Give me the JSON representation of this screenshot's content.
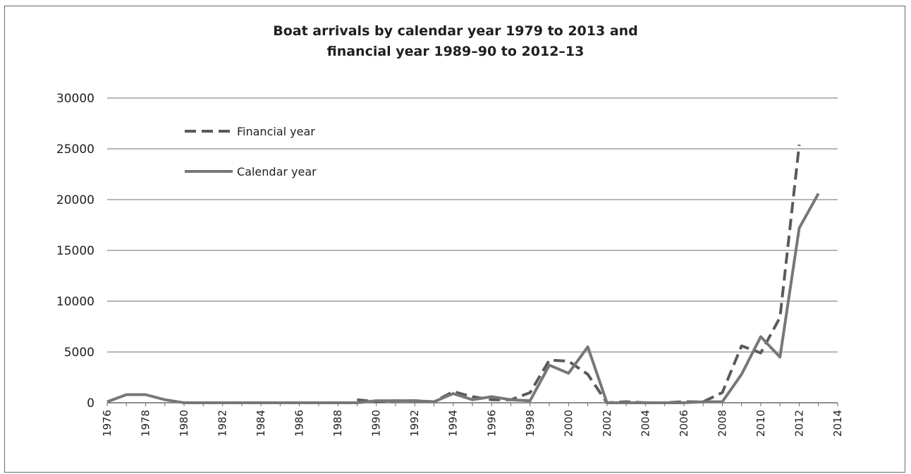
{
  "chart_data": {
    "type": "line",
    "title_lines": [
      "Boat arrivals by calendar year 1979 to 2013 and",
      "financial year  1989–90  to 2012–13"
    ],
    "xlabel": "",
    "ylabel": "",
    "xlim": [
      1976,
      2014
    ],
    "ylim": [
      0,
      30000
    ],
    "y_ticks": [
      0,
      5000,
      10000,
      15000,
      20000,
      25000,
      30000
    ],
    "x_ticks": [
      "1976",
      "1978",
      "1980",
      "1982",
      "1984",
      "1986",
      "1988",
      "1990",
      "1992",
      "1994",
      "1996",
      "1998",
      "2000",
      "2002",
      "2004",
      "2006",
      "2008",
      "2010",
      "2012",
      "2014"
    ],
    "grid": "horizontal",
    "legend_position": "top-left",
    "series": [
      {
        "name": "Financial year",
        "style": "dashed",
        "color": "#5a5a5a",
        "x": [
          1989,
          1990,
          1991,
          1992,
          1993,
          1994,
          1995,
          1996,
          1997,
          1998,
          1999,
          2000,
          2001,
          2002,
          2003,
          2004,
          2005,
          2006,
          2007,
          2008,
          2009,
          2010,
          2011,
          2012
        ],
        "y": [
          300,
          100,
          200,
          200,
          100,
          1100,
          600,
          300,
          300,
          1000,
          4200,
          4100,
          2800,
          0,
          100,
          0,
          0,
          100,
          100,
          1000,
          5600,
          4900,
          8400,
          25400
        ]
      },
      {
        "name": "Calendar year",
        "style": "solid",
        "color": "#777777",
        "x": [
          1976,
          1977,
          1978,
          1979,
          1980,
          1981,
          1982,
          1983,
          1984,
          1985,
          1986,
          1987,
          1988,
          1989,
          1990,
          1991,
          1992,
          1993,
          1994,
          1995,
          1996,
          1997,
          1998,
          1999,
          2000,
          2001,
          2002,
          2003,
          2004,
          2005,
          2006,
          2007,
          2008,
          2009,
          2010,
          2011,
          2012,
          2013
        ],
        "y": [
          100,
          800,
          800,
          300,
          0,
          0,
          0,
          0,
          0,
          0,
          0,
          0,
          0,
          0,
          200,
          200,
          200,
          100,
          900,
          300,
          600,
          300,
          200,
          3700,
          2900,
          5500,
          0,
          0,
          0,
          0,
          0,
          100,
          100,
          2800,
          6500,
          4500,
          17200,
          20600
        ]
      }
    ]
  }
}
